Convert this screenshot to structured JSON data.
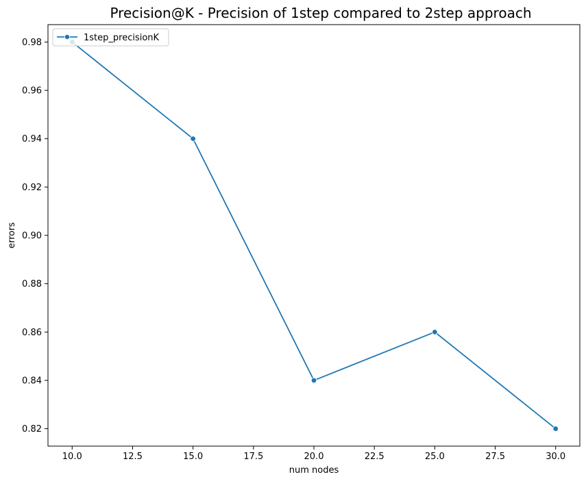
{
  "chart_data": {
    "type": "line",
    "title": "Precision@K - Precision of 1step compared to 2step approach",
    "xlabel": "num nodes",
    "ylabel": "errors",
    "xlim": [
      9.0,
      31.0
    ],
    "ylim": [
      0.8128,
      0.9872
    ],
    "x_ticks": [
      "10.0",
      "12.5",
      "15.0",
      "17.5",
      "20.0",
      "22.5",
      "25.0",
      "27.5",
      "30.0"
    ],
    "y_ticks": [
      "0.82",
      "0.84",
      "0.86",
      "0.88",
      "0.90",
      "0.92",
      "0.94",
      "0.96",
      "0.98"
    ],
    "grid": false,
    "legend_position": "top-left",
    "series": [
      {
        "name": "1step_precisionK",
        "color": "#1f77b4",
        "marker": "circle",
        "x": [
          10,
          15,
          20,
          25,
          30
        ],
        "y": [
          0.98,
          0.94,
          0.84,
          0.86,
          0.82
        ]
      }
    ]
  }
}
